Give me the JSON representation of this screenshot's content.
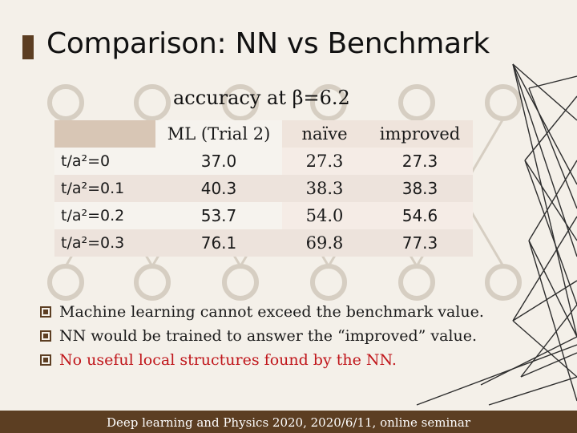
{
  "slide": {
    "title": "Comparison: NN vs Benchmark",
    "subtitle": "accuracy at β=6.2",
    "table": {
      "columns": [
        "ML (Trial 2)",
        "naïve",
        "improved"
      ],
      "rows": [
        {
          "label": "t/a²=0",
          "ml": "37.0",
          "naive": "27.3",
          "improved": "27.3"
        },
        {
          "label": "t/a²=0.1",
          "ml": "40.3",
          "naive": "38.3",
          "improved": "38.3"
        },
        {
          "label": "t/a²=0.2",
          "ml": "53.7",
          "naive": "54.0",
          "improved": "54.6"
        },
        {
          "label": "t/a²=0.3",
          "ml": "76.1",
          "naive": "69.8",
          "improved": "77.3"
        }
      ]
    },
    "bullets": [
      {
        "text": "Machine learning cannot exceed the benchmark value.",
        "highlight": false
      },
      {
        "text": "NN would be trained to answer the “improved” value.",
        "highlight": false
      },
      {
        "text": "No useful local structures found by the NN.",
        "highlight": true
      }
    ],
    "footer": "Deep learning and Physics 2020, 2020/6/11, online seminar"
  },
  "colors": {
    "accent_brown": "#5c3e22",
    "highlight_red": "#c0161b",
    "background": "#f4f0e9"
  }
}
